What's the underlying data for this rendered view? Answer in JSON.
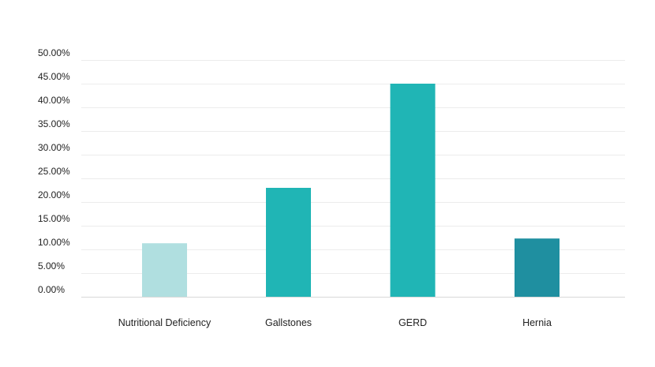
{
  "chart_data": {
    "type": "bar",
    "title": "",
    "xlabel": "",
    "ylabel": "",
    "categories": [
      "Nutritional Deficiency",
      "Gallstones",
      "GERD",
      "Hernia"
    ],
    "values": [
      0.113,
      0.23,
      0.45,
      0.123
    ],
    "bar_colors": [
      "#b0dfe0",
      "#20b5b5",
      "#20b5b5",
      "#1f8fa0"
    ],
    "y_ticks": [
      "0.00%",
      "5.00%",
      "10.00%",
      "15.00%",
      "20.00%",
      "25.00%",
      "30.00%",
      "35.00%",
      "40.00%",
      "45.00%",
      "50.00%"
    ],
    "ylim": [
      0,
      0.5
    ],
    "grid": true,
    "legend": "none"
  }
}
